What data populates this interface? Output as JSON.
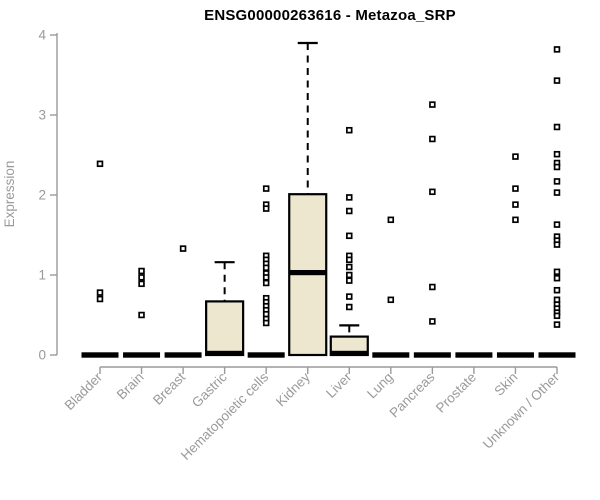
{
  "chart_data": {
    "type": "boxplot",
    "title": "ENSG00000263616 - Metazoa_SRP",
    "ylabel": "Expression",
    "xlabel": "",
    "ylim": [
      0,
      4
    ],
    "yticks": [
      0,
      1,
      2,
      3,
      4
    ],
    "grid": false,
    "legend": false,
    "categories": [
      "Bladder",
      "Brain",
      "Breast",
      "Gastric",
      "Hematopoietic cells",
      "Kidney",
      "Liver",
      "Lung",
      "Pancreas",
      "Prostate",
      "Skin",
      "Unknown / Other"
    ],
    "boxes": [
      {
        "category": "Bladder",
        "q1": 0,
        "median": 0,
        "q3": 0,
        "whisker_low": 0,
        "whisker_high": 0,
        "outliers": [
          2.39,
          0.78,
          0.7
        ]
      },
      {
        "category": "Brain",
        "q1": 0,
        "median": 0,
        "q3": 0,
        "whisker_low": 0,
        "whisker_high": 0,
        "outliers": [
          1.05,
          0.97,
          0.89,
          0.5
        ]
      },
      {
        "category": "Breast",
        "q1": 0,
        "median": 0,
        "q3": 0,
        "whisker_low": 0,
        "whisker_high": 0,
        "outliers": [
          1.33
        ]
      },
      {
        "category": "Gastric",
        "q1": 0,
        "median": 0.02,
        "q3": 0.67,
        "whisker_low": 0,
        "whisker_high": 1.16,
        "outliers": []
      },
      {
        "category": "Hematopoietic cells",
        "q1": 0,
        "median": 0,
        "q3": 0,
        "whisker_low": 0,
        "whisker_high": 0,
        "outliers": [
          2.08,
          1.88,
          1.83,
          1.24,
          1.19,
          1.14,
          1.09,
          1.02,
          0.97,
          0.9,
          0.71,
          0.66,
          0.61,
          0.56,
          0.51,
          0.45,
          0.4
        ]
      },
      {
        "category": "Kidney",
        "q1": 0,
        "median": 1.03,
        "q3": 2.01,
        "whisker_low": 0,
        "whisker_high": 3.9,
        "outliers": []
      },
      {
        "category": "Liver",
        "q1": 0,
        "median": 0.02,
        "q3": 0.23,
        "whisker_low": 0,
        "whisker_high": 0.37,
        "outliers": [
          2.81,
          1.97,
          1.8,
          1.49,
          1.24,
          1.19,
          1.1,
          1.0,
          0.93,
          0.73,
          0.6
        ]
      },
      {
        "category": "Lung",
        "q1": 0,
        "median": 0,
        "q3": 0,
        "whisker_low": 0,
        "whisker_high": 0,
        "outliers": [
          1.69,
          0.69
        ]
      },
      {
        "category": "Pancreas",
        "q1": 0,
        "median": 0,
        "q3": 0,
        "whisker_low": 0,
        "whisker_high": 0,
        "outliers": [
          3.13,
          2.7,
          2.04,
          0.85,
          0.42
        ]
      },
      {
        "category": "Prostate",
        "q1": 0,
        "median": 0,
        "q3": 0,
        "whisker_low": 0,
        "whisker_high": 0,
        "outliers": []
      },
      {
        "category": "Skin",
        "q1": 0,
        "median": 0,
        "q3": 0,
        "whisker_low": 0,
        "whisker_high": 0,
        "outliers": [
          2.48,
          2.08,
          1.88,
          1.69
        ]
      },
      {
        "category": "Unknown / Other",
        "q1": 0,
        "median": 0,
        "q3": 0,
        "whisker_low": 0,
        "whisker_high": 0,
        "outliers": [
          3.82,
          3.43,
          2.85,
          2.51,
          2.4,
          2.35,
          2.17,
          2.03,
          1.63,
          1.48,
          1.43,
          1.38,
          1.04,
          0.96,
          0.81,
          0.69,
          0.63,
          0.58,
          0.53,
          0.49,
          0.38
        ]
      }
    ],
    "colors": {
      "box_fill": "#EDE7CF",
      "box_border": "#000000",
      "median": "#000000",
      "outlier_fill": "#ffffff",
      "axis": "#9a9a9a",
      "tick_label": "#9a9a9a",
      "title": "#000000",
      "background": "#ffffff"
    }
  }
}
